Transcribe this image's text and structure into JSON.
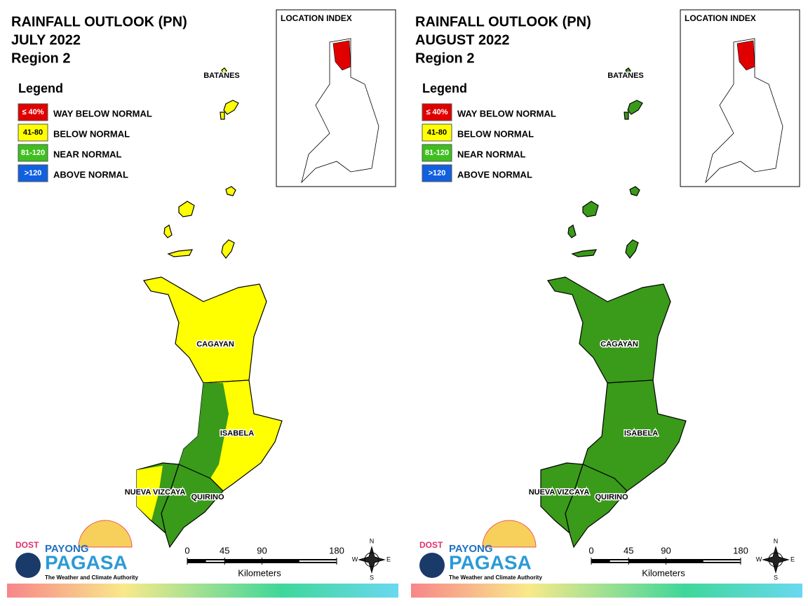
{
  "panels": [
    {
      "title": [
        "RAINFALL OUTLOOK (PN)",
        "JULY 2022",
        "Region 2"
      ],
      "legend": {
        "title": "Legend",
        "items": [
          {
            "key": "≤ 40%",
            "label": "WAY BELOW NORMAL",
            "color": "#e00000"
          },
          {
            "key": "41-80",
            "label": "BELOW NORMAL",
            "color": "#ffff00"
          },
          {
            "key": "81-120",
            "label": "NEAR NORMAL",
            "color": "#3fbf1f"
          },
          {
            "key": ">120",
            "label": "ABOVE NORMAL",
            "color": "#1060e0"
          }
        ]
      },
      "location_index": "LOCATION INDEX",
      "provinces": [
        {
          "name": "BATANES",
          "colors": [
            "#ffff00"
          ]
        },
        {
          "name": "CAGAYAN",
          "colors": [
            "#ffff00"
          ]
        },
        {
          "name": "ISABELA",
          "colors": [
            "#ffff00",
            "#3a9a1a"
          ]
        },
        {
          "name": "QUIRINO",
          "colors": [
            "#3a9a1a"
          ]
        },
        {
          "name": "NUEVA VIZCAYA",
          "colors": [
            "#3a9a1a",
            "#ffff00"
          ]
        }
      ],
      "scale": {
        "ticks": [
          0,
          45,
          90,
          180
        ],
        "unit": "Kilometers"
      },
      "compass": [
        "N",
        "E",
        "S",
        "W"
      ],
      "logo": {
        "agency": "DOST",
        "brand_top": "PAYONG",
        "brand": "PAGASA",
        "tagline": "The Weather and Climate Authority"
      }
    },
    {
      "title": [
        "RAINFALL OUTLOOK (PN)",
        "AUGUST 2022",
        "Region 2"
      ],
      "legend": {
        "title": "Legend",
        "items": [
          {
            "key": "≤ 40%",
            "label": "WAY BELOW NORMAL",
            "color": "#e00000"
          },
          {
            "key": "41-80",
            "label": "BELOW NORMAL",
            "color": "#ffff00"
          },
          {
            "key": "81-120",
            "label": "NEAR NORMAL",
            "color": "#3fbf1f"
          },
          {
            "key": ">120",
            "label": "ABOVE NORMAL",
            "color": "#1060e0"
          }
        ]
      },
      "location_index": "LOCATION INDEX",
      "provinces": [
        {
          "name": "BATANES",
          "colors": [
            "#3a9a1a"
          ]
        },
        {
          "name": "CAGAYAN",
          "colors": [
            "#3a9a1a"
          ]
        },
        {
          "name": "ISABELA",
          "colors": [
            "#3a9a1a"
          ]
        },
        {
          "name": "QUIRINO",
          "colors": [
            "#3a9a1a"
          ]
        },
        {
          "name": "NUEVA VIZCAYA",
          "colors": [
            "#3a9a1a"
          ]
        }
      ],
      "scale": {
        "ticks": [
          0,
          45,
          90,
          180
        ],
        "unit": "Kilometers"
      },
      "compass": [
        "N",
        "E",
        "S",
        "W"
      ],
      "logo": {
        "agency": "DOST",
        "brand_top": "PAYONG",
        "brand": "PAGASA",
        "tagline": "The Weather and Climate Authority"
      }
    }
  ]
}
